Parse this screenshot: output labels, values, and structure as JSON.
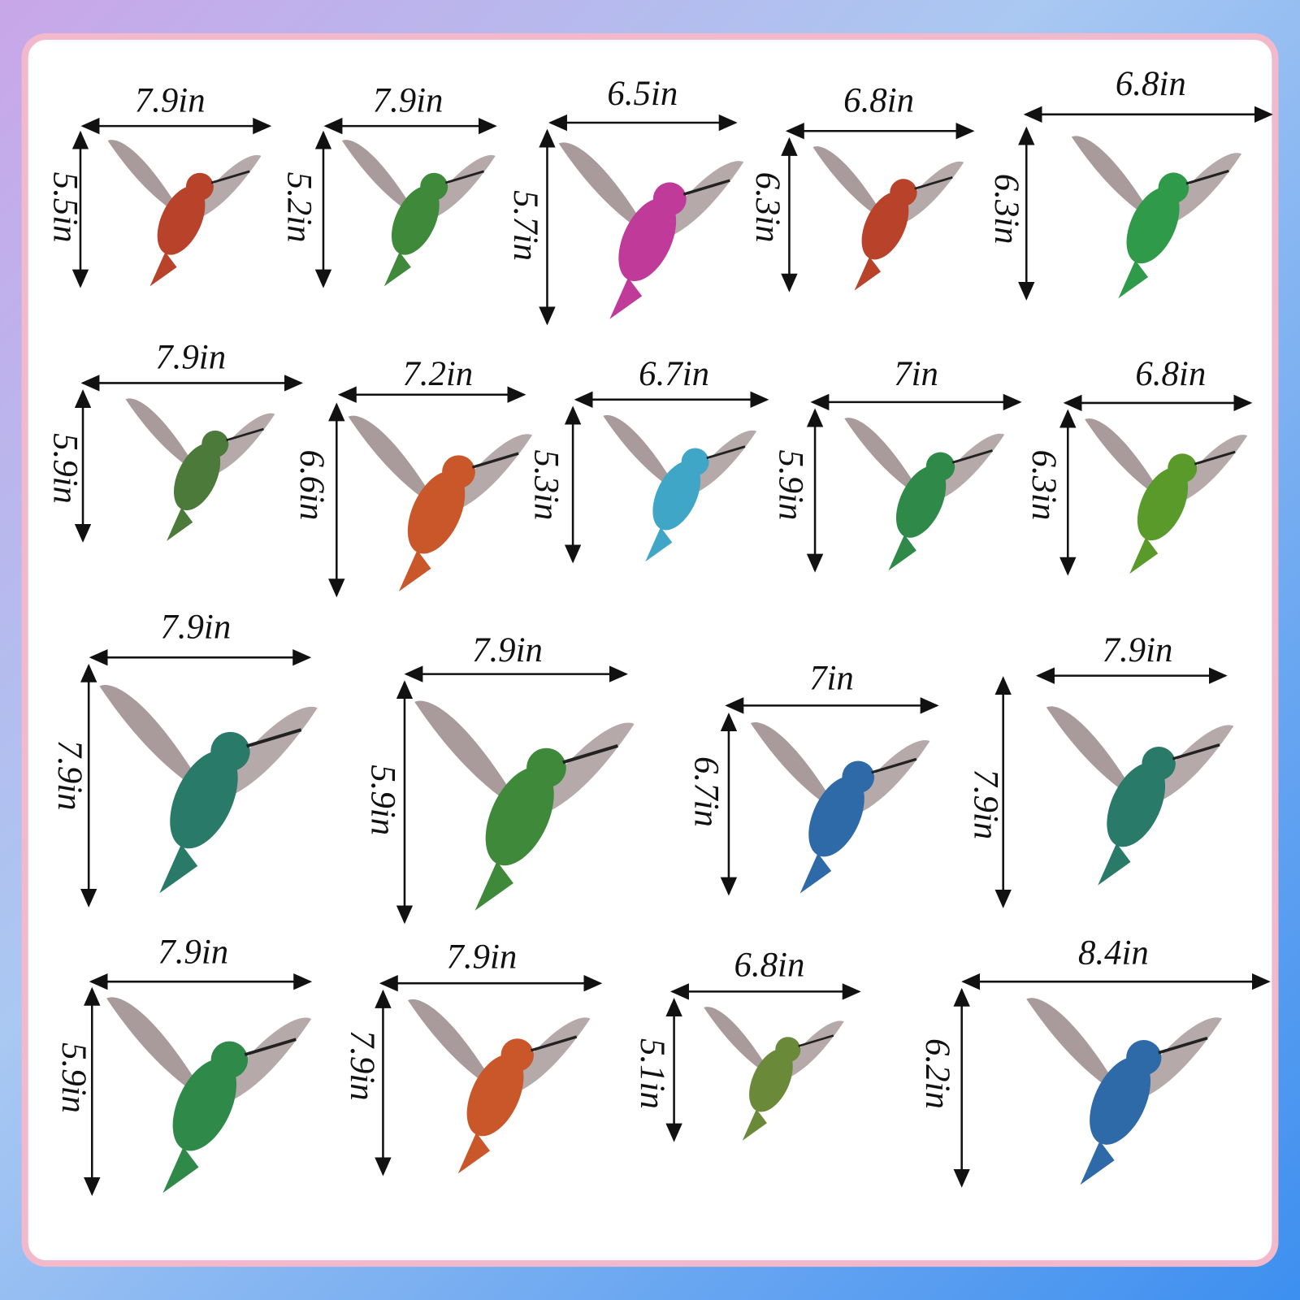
{
  "stickers": [
    {
      "width": "7.9in",
      "height": "5.5in"
    },
    {
      "width": "7.9in",
      "height": "5.2in"
    },
    {
      "width": "6.5in",
      "height": "5.7in"
    },
    {
      "width": "6.8in",
      "height": "6.3in"
    },
    {
      "width": "6.8in",
      "height": "6.3in"
    },
    {
      "width": "7.9in",
      "height": "5.9in"
    },
    {
      "width": "7.2in",
      "height": "6.6in"
    },
    {
      "width": "6.7in",
      "height": "5.3in"
    },
    {
      "width": "7in",
      "height": "5.9in"
    },
    {
      "width": "6.8in",
      "height": "6.3in"
    },
    {
      "width": "7.9in",
      "height": "7.9in"
    },
    {
      "width": "7.9in",
      "height": "5.9in"
    },
    {
      "width": "7in",
      "height": "6.7in"
    },
    {
      "width": "7.9in",
      "height": "7.9in"
    },
    {
      "width": "7.9in",
      "height": "5.9in"
    },
    {
      "width": "7.9in",
      "height": "7.9in"
    },
    {
      "width": "6.8in",
      "height": "5.1in"
    },
    {
      "width": "8.4in",
      "height": "6.2in"
    }
  ]
}
